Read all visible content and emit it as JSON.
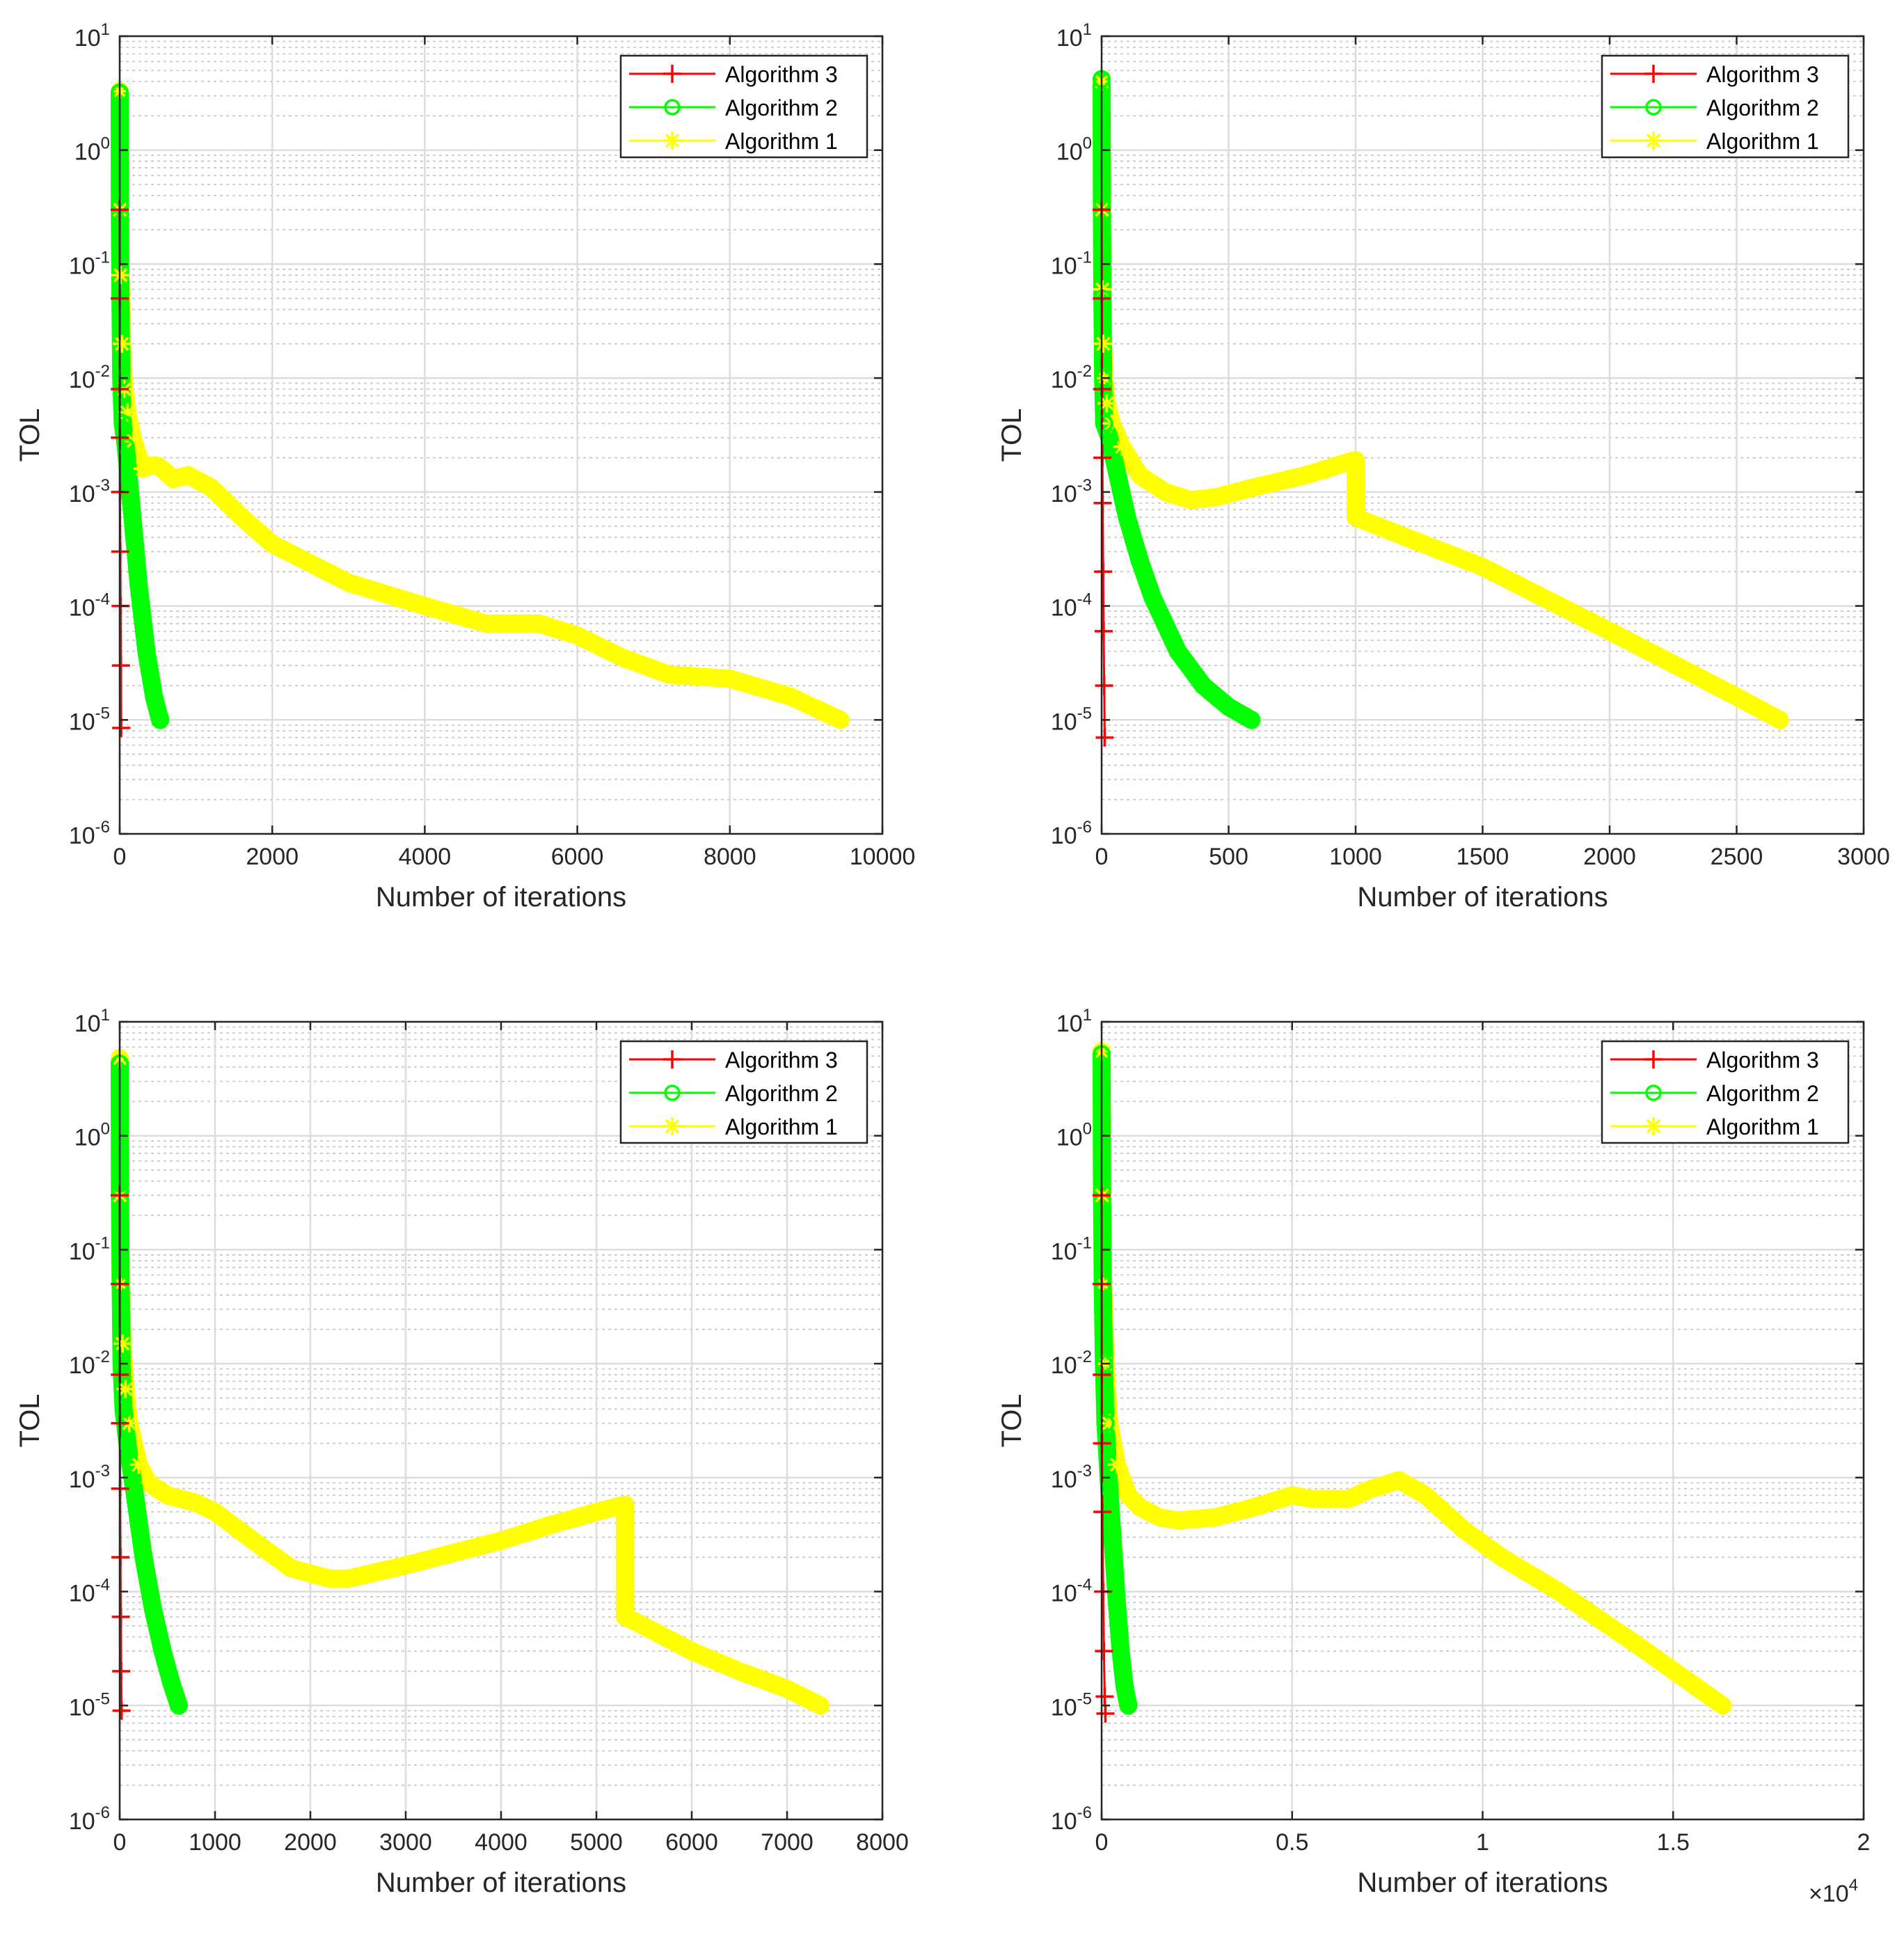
{
  "chart_data": [
    {
      "type": "line",
      "xlabel": "Number of iterations",
      "ylabel": "TOL",
      "yscale": "log",
      "xlim": [
        0,
        10000
      ],
      "ylim": [
        1e-06,
        10
      ],
      "xticks": [
        "0",
        "2000",
        "4000",
        "6000",
        "8000",
        "10000"
      ],
      "xtick_values": [
        0,
        2000,
        4000,
        6000,
        8000,
        10000
      ],
      "x_multiplier": "",
      "grid": true,
      "legend_position": "top-right",
      "series": [
        {
          "name": "Algorithm  3",
          "color": "#ff0000",
          "marker": "plus",
          "x": [
            0,
            1,
            2,
            3,
            5,
            8,
            12,
            16,
            20
          ],
          "y": [
            0.3,
            0.05,
            0.008,
            0.003,
            0.001,
            0.0003,
            0.0001,
            3e-05,
            8.5e-06
          ]
        },
        {
          "name": "Algorithm 2",
          "color": "#00ff00",
          "marker": "circle",
          "x": [
            0,
            2,
            10,
            20,
            40,
            80,
            150,
            250,
            350,
            450,
            530
          ],
          "y": [
            3.2,
            0.33,
            0.05,
            0.01,
            0.004,
            0.0025,
            0.0008,
            0.00015,
            4e-05,
            1.6e-05,
            1e-05
          ]
        },
        {
          "name": "Algorithm 1",
          "color": "#ffff00",
          "marker": "star",
          "x": [
            0,
            2,
            10,
            30,
            60,
            100,
            180,
            300,
            400,
            500,
            600,
            700,
            900,
            1200,
            1600,
            2000,
            3000,
            4000,
            4800,
            5500,
            6000,
            6600,
            7200,
            8000,
            8800,
            9450
          ],
          "y": [
            3.3,
            0.3,
            0.08,
            0.02,
            0.008,
            0.005,
            0.0028,
            0.0016,
            0.0017,
            0.0017,
            0.0015,
            0.0013,
            0.0014,
            0.0011,
            0.0006,
            0.00035,
            0.00016,
            0.0001,
            7e-05,
            7e-05,
            5.5e-05,
            3.5e-05,
            2.5e-05,
            2.3e-05,
            1.6e-05,
            1e-05
          ]
        }
      ]
    },
    {
      "type": "line",
      "xlabel": "Number of iterations",
      "ylabel": "TOL",
      "yscale": "log",
      "xlim": [
        0,
        3000
      ],
      "ylim": [
        1e-06,
        10
      ],
      "xticks": [
        "0",
        "500",
        "1000",
        "1500",
        "2000",
        "2500",
        "3000"
      ],
      "xtick_values": [
        0,
        500,
        1000,
        1500,
        2000,
        2500,
        3000
      ],
      "x_multiplier": "",
      "grid": true,
      "legend_position": "top-right",
      "series": [
        {
          "name": "Algorithm  3",
          "color": "#ff0000",
          "marker": "plus",
          "x": [
            0,
            1,
            2,
            3,
            4,
            6,
            8,
            10,
            12
          ],
          "y": [
            0.3,
            0.05,
            0.008,
            0.002,
            0.0008,
            0.0002,
            6e-05,
            2e-05,
            7e-06
          ]
        },
        {
          "name": "Algorithm 2",
          "color": "#00ff00",
          "marker": "circle",
          "x": [
            0,
            1,
            3,
            6,
            10,
            30,
            60,
            100,
            150,
            200,
            300,
            400,
            500,
            590
          ],
          "y": [
            4.2,
            0.35,
            0.05,
            0.01,
            0.004,
            0.003,
            0.0015,
            0.0006,
            0.00025,
            0.00012,
            4e-05,
            2e-05,
            1.3e-05,
            1e-05
          ]
        },
        {
          "name": "Algorithm 1",
          "color": "#ffff00",
          "marker": "star",
          "x": [
            0,
            1,
            3,
            6,
            10,
            20,
            40,
            80,
            150,
            250,
            350,
            450,
            600,
            800,
            995,
            1000,
            1000,
            1200,
            1500,
            2000,
            2500,
            2670
          ],
          "y": [
            4.0,
            0.3,
            0.06,
            0.02,
            0.01,
            0.006,
            0.004,
            0.0025,
            0.0014,
            0.001,
            0.00085,
            0.0009,
            0.0011,
            0.0014,
            0.0019,
            0.0019,
            0.0006,
            0.0004,
            0.00022,
            6e-05,
            1.6e-05,
            1e-05
          ]
        }
      ]
    },
    {
      "type": "line",
      "xlabel": "Number of iterations",
      "ylabel": "TOL",
      "yscale": "log",
      "xlim": [
        0,
        8000
      ],
      "ylim": [
        1e-06,
        10
      ],
      "xticks": [
        "0",
        "1000",
        "2000",
        "3000",
        "4000",
        "5000",
        "6000",
        "7000",
        "8000"
      ],
      "xtick_values": [
        0,
        1000,
        2000,
        3000,
        4000,
        5000,
        6000,
        7000,
        8000
      ],
      "x_multiplier": "",
      "grid": true,
      "legend_position": "top-right",
      "series": [
        {
          "name": "Algorithm 3",
          "color": "#ff0000",
          "marker": "plus",
          "x": [
            0,
            1,
            2,
            3,
            5,
            8,
            12,
            16,
            20
          ],
          "y": [
            0.3,
            0.05,
            0.008,
            0.003,
            0.0008,
            0.0002,
            6e-05,
            2e-05,
            9e-06
          ]
        },
        {
          "name": "Algorithm 2",
          "color": "#00ff00",
          "marker": "circle",
          "x": [
            0,
            2,
            10,
            20,
            40,
            80,
            150,
            250,
            350,
            450,
            540,
            620
          ],
          "y": [
            4.3,
            0.38,
            0.05,
            0.01,
            0.004,
            0.002,
            0.0008,
            0.0002,
            7e-05,
            3e-05,
            1.6e-05,
            1e-05
          ]
        },
        {
          "name": "Algorithm 1",
          "color": "#ffff00",
          "marker": "star",
          "x": [
            0,
            2,
            10,
            30,
            60,
            100,
            200,
            300,
            500,
            800,
            1000,
            1400,
            1800,
            2200,
            2400,
            3000,
            4000,
            4500,
            5000,
            5300,
            5300,
            5300,
            5400,
            6000,
            6500,
            7000,
            7350
          ],
          "y": [
            4.8,
            0.3,
            0.05,
            0.015,
            0.006,
            0.003,
            0.0013,
            0.0009,
            0.0007,
            0.0006,
            0.0005,
            0.00028,
            0.00016,
            0.00013,
            0.00013,
            0.00017,
            0.00028,
            0.00038,
            0.0005,
            0.00058,
            0.0002,
            6e-05,
            5.5e-05,
            3e-05,
            2e-05,
            1.4e-05,
            1e-05
          ]
        }
      ]
    },
    {
      "type": "line",
      "xlabel": "Number of iterations",
      "ylabel": "TOL",
      "yscale": "log",
      "xlim": [
        0,
        20000
      ],
      "ylim": [
        1e-06,
        10
      ],
      "xticks": [
        "0",
        "0.5",
        "1",
        "1.5",
        "2"
      ],
      "xtick_values": [
        0,
        5000,
        10000,
        15000,
        20000
      ],
      "x_multiplier": "×10",
      "x_multiplier_exp": "4",
      "grid": true,
      "legend_position": "top-right",
      "series": [
        {
          "name": "Algorithm  3",
          "color": "#ff0000",
          "marker": "plus",
          "x": [
            0,
            2,
            5,
            10,
            20,
            40,
            60,
            80,
            100
          ],
          "y": [
            0.3,
            0.05,
            0.008,
            0.002,
            0.0005,
            0.0001,
            3e-05,
            1.2e-05,
            8.5e-06
          ]
        },
        {
          "name": "Algorithm 2",
          "color": "#00ff00",
          "marker": "circle",
          "x": [
            0,
            10,
            30,
            60,
            100,
            200,
            300,
            400,
            500,
            600,
            700
          ],
          "y": [
            5.2,
            0.4,
            0.05,
            0.01,
            0.003,
            0.0008,
            0.00025,
            8e-05,
            3e-05,
            1.5e-05,
            1e-05
          ]
        },
        {
          "name": "Algorithm 1",
          "color": "#ffff00",
          "marker": "star",
          "x": [
            0,
            10,
            40,
            100,
            200,
            400,
            700,
            1000,
            1500,
            2000,
            3000,
            4000,
            5000,
            5500,
            6500,
            7000,
            7800,
            8500,
            9500,
            10500,
            12000,
            14000,
            16300
          ],
          "y": [
            5.5,
            0.3,
            0.05,
            0.01,
            0.003,
            0.0013,
            0.0007,
            0.00055,
            0.00045,
            0.00042,
            0.00045,
            0.00055,
            0.0007,
            0.00065,
            0.00065,
            0.00078,
            0.00095,
            0.0007,
            0.00035,
            0.0002,
            0.0001,
            3.5e-05,
            1e-05
          ]
        }
      ]
    }
  ]
}
